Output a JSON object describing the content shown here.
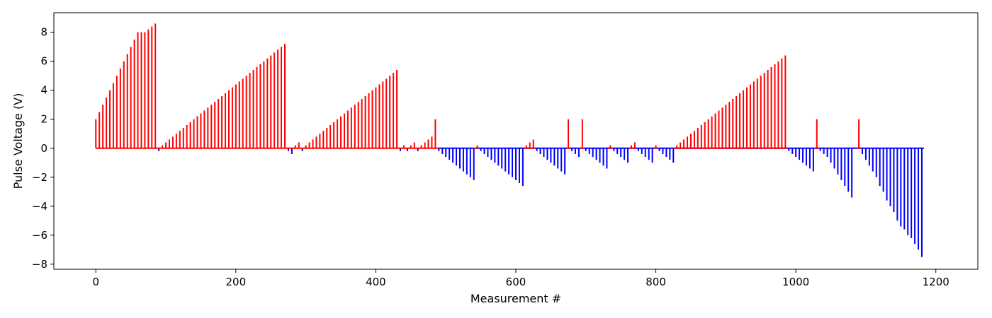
{
  "chart_data": {
    "type": "bar",
    "style": "stem",
    "xlabel": "Measurement #",
    "ylabel": "Pulse Voltage (V)",
    "xlim": [
      -60,
      1260
    ],
    "ylim": [
      -8.35,
      9.35
    ],
    "xticks": [
      0,
      200,
      400,
      600,
      800,
      1000,
      1200
    ],
    "xtick_labels": [
      "0",
      "200",
      "400",
      "600",
      "800",
      "1000",
      "1200"
    ],
    "yticks": [
      -8,
      -6,
      -4,
      -2,
      0,
      2,
      4,
      6,
      8
    ],
    "ytick_labels": [
      "−8",
      "−6",
      "−4",
      "−2",
      "0",
      "2",
      "4",
      "6",
      "8"
    ],
    "grid": false,
    "colors": {
      "positive": "#ff0000",
      "negative": "#0000ff",
      "frame": "#000000"
    },
    "series": [
      {
        "color": "#ff0000",
        "points": [
          [
            0,
            2.0
          ],
          [
            5,
            2.5
          ],
          [
            10,
            3.0
          ],
          [
            15,
            3.5
          ],
          [
            20,
            4.0
          ],
          [
            25,
            4.5
          ],
          [
            30,
            5.0
          ],
          [
            35,
            5.5
          ],
          [
            40,
            6.0
          ],
          [
            45,
            6.5
          ],
          [
            50,
            7.0
          ],
          [
            55,
            7.5
          ],
          [
            60,
            8.0
          ],
          [
            65,
            8.0
          ],
          [
            70,
            8.0
          ],
          [
            75,
            8.2
          ],
          [
            80,
            8.4
          ],
          [
            85,
            8.6
          ],
          [
            95,
            0.2
          ],
          [
            100,
            0.4
          ],
          [
            105,
            0.6
          ],
          [
            110,
            0.8
          ],
          [
            115,
            1.0
          ],
          [
            120,
            1.2
          ],
          [
            125,
            1.4
          ],
          [
            130,
            1.6
          ],
          [
            135,
            1.8
          ],
          [
            140,
            2.0
          ],
          [
            145,
            2.2
          ],
          [
            150,
            2.4
          ],
          [
            155,
            2.6
          ],
          [
            160,
            2.8
          ],
          [
            165,
            3.0
          ],
          [
            170,
            3.2
          ],
          [
            175,
            3.4
          ],
          [
            180,
            3.6
          ],
          [
            185,
            3.8
          ],
          [
            190,
            4.0
          ],
          [
            195,
            4.2
          ],
          [
            200,
            4.4
          ],
          [
            205,
            4.6
          ],
          [
            210,
            4.8
          ],
          [
            215,
            5.0
          ],
          [
            220,
            5.2
          ],
          [
            225,
            5.4
          ],
          [
            230,
            5.6
          ],
          [
            235,
            5.8
          ],
          [
            240,
            6.0
          ],
          [
            245,
            6.2
          ],
          [
            250,
            6.4
          ],
          [
            255,
            6.6
          ],
          [
            260,
            6.8
          ],
          [
            265,
            7.0
          ],
          [
            270,
            7.2
          ],
          [
            285,
            0.2
          ],
          [
            290,
            0.4
          ],
          [
            300,
            0.2
          ],
          [
            305,
            0.4
          ],
          [
            310,
            0.6
          ],
          [
            315,
            0.8
          ],
          [
            320,
            1.0
          ],
          [
            325,
            1.2
          ],
          [
            330,
            1.4
          ],
          [
            335,
            1.6
          ],
          [
            340,
            1.8
          ],
          [
            345,
            2.0
          ],
          [
            350,
            2.2
          ],
          [
            355,
            2.4
          ],
          [
            360,
            2.6
          ],
          [
            365,
            2.8
          ],
          [
            370,
            3.0
          ],
          [
            375,
            3.2
          ],
          [
            380,
            3.4
          ],
          [
            385,
            3.6
          ],
          [
            390,
            3.8
          ],
          [
            395,
            4.0
          ],
          [
            400,
            4.2
          ],
          [
            405,
            4.4
          ],
          [
            410,
            4.6
          ],
          [
            415,
            4.8
          ],
          [
            420,
            5.0
          ],
          [
            425,
            5.2
          ],
          [
            430,
            5.4
          ],
          [
            440,
            0.2
          ],
          [
            450,
            0.2
          ],
          [
            455,
            0.4
          ],
          [
            465,
            0.2
          ],
          [
            470,
            0.4
          ],
          [
            475,
            0.6
          ],
          [
            480,
            0.8
          ],
          [
            485,
            2.0
          ],
          [
            545,
            0.2
          ],
          [
            615,
            0.2
          ],
          [
            620,
            0.4
          ],
          [
            625,
            0.6
          ],
          [
            675,
            2.0
          ],
          [
            695,
            2.0
          ],
          [
            735,
            0.2
          ],
          [
            765,
            0.2
          ],
          [
            770,
            0.4
          ],
          [
            800,
            0.2
          ],
          [
            830,
            0.2
          ],
          [
            835,
            0.4
          ],
          [
            840,
            0.6
          ],
          [
            845,
            0.8
          ],
          [
            850,
            1.0
          ],
          [
            855,
            1.2
          ],
          [
            860,
            1.4
          ],
          [
            865,
            1.6
          ],
          [
            870,
            1.8
          ],
          [
            875,
            2.0
          ],
          [
            880,
            2.2
          ],
          [
            885,
            2.4
          ],
          [
            890,
            2.6
          ],
          [
            895,
            2.8
          ],
          [
            900,
            3.0
          ],
          [
            905,
            3.2
          ],
          [
            910,
            3.4
          ],
          [
            915,
            3.6
          ],
          [
            920,
            3.8
          ],
          [
            925,
            4.0
          ],
          [
            930,
            4.2
          ],
          [
            935,
            4.4
          ],
          [
            940,
            4.6
          ],
          [
            945,
            4.8
          ],
          [
            950,
            5.0
          ],
          [
            955,
            5.2
          ],
          [
            960,
            5.4
          ],
          [
            965,
            5.6
          ],
          [
            970,
            5.8
          ],
          [
            975,
            6.0
          ],
          [
            980,
            6.2
          ],
          [
            985,
            6.4
          ],
          [
            1030,
            2.0
          ],
          [
            1090,
            2.0
          ]
        ]
      },
      {
        "color": "#0000ff",
        "points": [
          [
            90,
            -0.2
          ],
          [
            275,
            -0.2
          ],
          [
            280,
            -0.4
          ],
          [
            295,
            -0.2
          ],
          [
            435,
            -0.2
          ],
          [
            445,
            -0.2
          ],
          [
            460,
            -0.2
          ],
          [
            490,
            -0.2
          ],
          [
            495,
            -0.4
          ],
          [
            500,
            -0.6
          ],
          [
            505,
            -0.8
          ],
          [
            510,
            -1.0
          ],
          [
            515,
            -1.2
          ],
          [
            520,
            -1.4
          ],
          [
            525,
            -1.6
          ],
          [
            530,
            -1.8
          ],
          [
            535,
            -2.0
          ],
          [
            540,
            -2.2
          ],
          [
            550,
            -0.2
          ],
          [
            555,
            -0.4
          ],
          [
            560,
            -0.6
          ],
          [
            565,
            -0.8
          ],
          [
            570,
            -1.0
          ],
          [
            575,
            -1.2
          ],
          [
            580,
            -1.4
          ],
          [
            585,
            -1.6
          ],
          [
            590,
            -1.8
          ],
          [
            595,
            -2.0
          ],
          [
            600,
            -2.2
          ],
          [
            605,
            -2.4
          ],
          [
            610,
            -2.6
          ],
          [
            630,
            -0.2
          ],
          [
            635,
            -0.4
          ],
          [
            640,
            -0.6
          ],
          [
            645,
            -0.8
          ],
          [
            650,
            -1.0
          ],
          [
            655,
            -1.2
          ],
          [
            660,
            -1.4
          ],
          [
            665,
            -1.6
          ],
          [
            670,
            -1.8
          ],
          [
            680,
            -0.2
          ],
          [
            685,
            -0.4
          ],
          [
            690,
            -0.6
          ],
          [
            700,
            -0.2
          ],
          [
            705,
            -0.4
          ],
          [
            710,
            -0.6
          ],
          [
            715,
            -0.8
          ],
          [
            720,
            -1.0
          ],
          [
            725,
            -1.2
          ],
          [
            730,
            -1.4
          ],
          [
            740,
            -0.2
          ],
          [
            745,
            -0.4
          ],
          [
            750,
            -0.6
          ],
          [
            755,
            -0.8
          ],
          [
            760,
            -1.0
          ],
          [
            775,
            -0.2
          ],
          [
            780,
            -0.4
          ],
          [
            785,
            -0.6
          ],
          [
            790,
            -0.8
          ],
          [
            795,
            -1.0
          ],
          [
            805,
            -0.2
          ],
          [
            810,
            -0.4
          ],
          [
            815,
            -0.6
          ],
          [
            820,
            -0.8
          ],
          [
            825,
            -1.0
          ],
          [
            990,
            -0.2
          ],
          [
            995,
            -0.4
          ],
          [
            1000,
            -0.6
          ],
          [
            1005,
            -0.8
          ],
          [
            1010,
            -1.0
          ],
          [
            1015,
            -1.2
          ],
          [
            1020,
            -1.4
          ],
          [
            1025,
            -1.6
          ],
          [
            1035,
            -0.2
          ],
          [
            1040,
            -0.4
          ],
          [
            1045,
            -0.6
          ],
          [
            1050,
            -1.0
          ],
          [
            1055,
            -1.4
          ],
          [
            1060,
            -1.8
          ],
          [
            1065,
            -2.2
          ],
          [
            1070,
            -2.6
          ],
          [
            1075,
            -3.0
          ],
          [
            1080,
            -3.4
          ],
          [
            1095,
            -0.4
          ],
          [
            1100,
            -0.8
          ],
          [
            1105,
            -1.2
          ],
          [
            1110,
            -1.6
          ],
          [
            1115,
            -2.0
          ],
          [
            1120,
            -2.6
          ],
          [
            1125,
            -3.0
          ],
          [
            1130,
            -3.6
          ],
          [
            1135,
            -4.0
          ],
          [
            1140,
            -4.4
          ],
          [
            1145,
            -5.0
          ],
          [
            1150,
            -5.4
          ],
          [
            1155,
            -5.6
          ],
          [
            1160,
            -6.0
          ],
          [
            1165,
            -6.2
          ],
          [
            1170,
            -6.6
          ],
          [
            1175,
            -7.0
          ],
          [
            1180,
            -7.5
          ]
        ]
      }
    ],
    "baseline_segments": [
      {
        "x": [
          0,
          490
        ],
        "color": "#ff0000"
      },
      {
        "x": [
          490,
          1183
        ],
        "color": "#0000ff"
      },
      {
        "x": [
          540,
          545
        ],
        "color": "#ff0000"
      },
      {
        "x": [
          612,
          628
        ],
        "color": "#ff0000"
      },
      {
        "x": [
          672,
          678
        ],
        "color": "#ff0000"
      },
      {
        "x": [
          692,
          698
        ],
        "color": "#ff0000"
      },
      {
        "x": [
          732,
          738
        ],
        "color": "#ff0000"
      },
      {
        "x": [
          762,
          772
        ],
        "color": "#ff0000"
      },
      {
        "x": [
          797,
          803
        ],
        "color": "#ff0000"
      },
      {
        "x": [
          826,
          988
        ],
        "color": "#ff0000"
      },
      {
        "x": [
          1027,
          1033
        ],
        "color": "#ff0000"
      },
      {
        "x": [
          1087,
          1093
        ],
        "color": "#ff0000"
      }
    ]
  }
}
